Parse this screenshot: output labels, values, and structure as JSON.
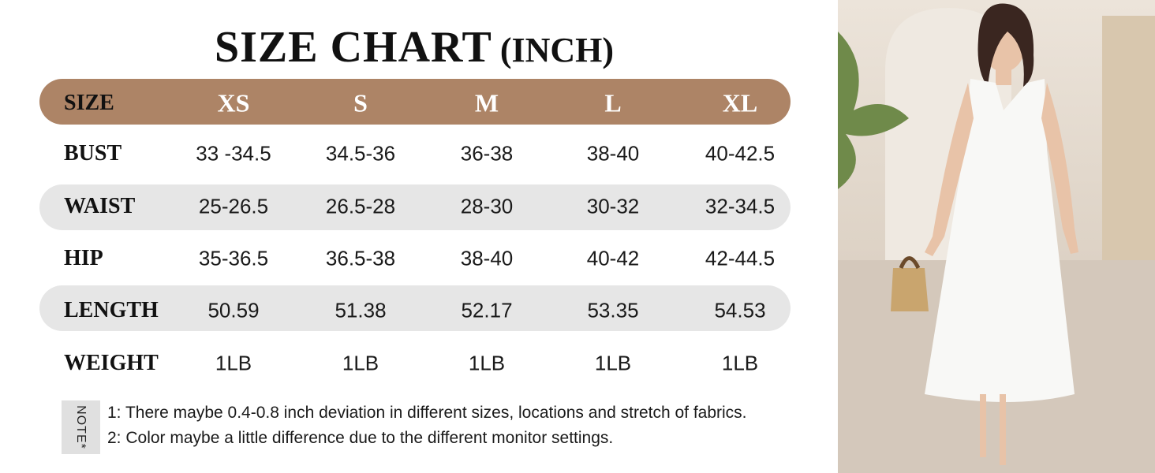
{
  "header": {
    "title": "SIZE CHART",
    "unit": "(INCH)"
  },
  "table": {
    "columns": [
      "SIZE",
      "XS",
      "S",
      "M",
      "L",
      "XL"
    ],
    "rows": [
      [
        "BUST",
        "33 -34.5",
        "34.5-36",
        "36-38",
        "38-40",
        "40-42.5"
      ],
      [
        "WAIST",
        "25-26.5",
        "26.5-28",
        "28-30",
        "30-32",
        "32-34.5"
      ],
      [
        "HIP",
        "35-36.5",
        "36.5-38",
        "38-40",
        "40-42",
        "42-44.5"
      ],
      [
        "LENGTH",
        "50.59",
        "51.38",
        "52.17",
        "53.35",
        "54.53"
      ],
      [
        "WEIGHT",
        "1LB",
        "1LB",
        "1LB",
        "1LB",
        "1LB"
      ]
    ]
  },
  "note": {
    "label": "NOTE*",
    "lines": [
      "1: There maybe 0.4-0.8 inch deviation in different sizes, locations and stretch of fabrics.",
      "2: Color maybe a little difference due to the different monitor settings."
    ]
  }
}
